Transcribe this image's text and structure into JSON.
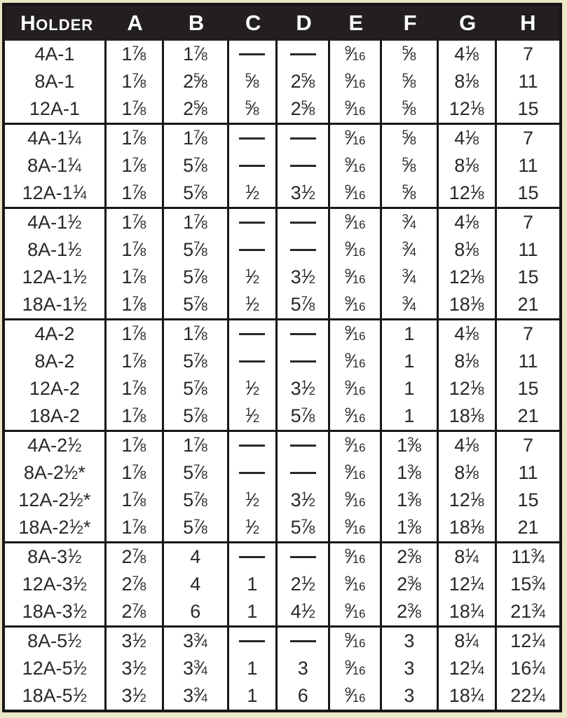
{
  "colors": {
    "page_edge": "#ebe6c4",
    "header_bg": "#231f20",
    "header_text": "#ffffff",
    "body_bg": "#ffffff",
    "border": "#171717",
    "text": "#2b2728"
  },
  "table": {
    "header": {
      "holder_label": "Holder",
      "columns": [
        "A",
        "B",
        "C",
        "D",
        "E",
        "F",
        "G",
        "H"
      ]
    },
    "empty_marker": "—",
    "groups": [
      {
        "rows": [
          {
            "holder": "4A-1",
            "values": [
              "1 7/8",
              "1 7/8",
              "—",
              "—",
              "9/16",
              "5/8",
              "4 1/8",
              "7"
            ]
          },
          {
            "holder": "8A-1",
            "values": [
              "1 7/8",
              "2 5/8",
              "5/8",
              "2 5/8",
              "9/16",
              "5/8",
              "8 1/8",
              "11"
            ]
          },
          {
            "holder": "12A-1",
            "values": [
              "1 7/8",
              "2 5/8",
              "5/8",
              "2 5/8",
              "9/16",
              "5/8",
              "12 1/8",
              "15"
            ]
          }
        ]
      },
      {
        "rows": [
          {
            "holder": "4A-1 1/4",
            "values": [
              "1 7/8",
              "1 7/8",
              "—",
              "—",
              "9/16",
              "5/8",
              "4 1/8",
              "7"
            ]
          },
          {
            "holder": "8A-1 1/4",
            "values": [
              "1 7/8",
              "5 7/8",
              "—",
              "—",
              "9/16",
              "5/8",
              "8 1/8",
              "11"
            ]
          },
          {
            "holder": "12A-1 1/4",
            "values": [
              "1 7/8",
              "5 7/8",
              "1/2",
              "3 1/2",
              "9/16",
              "5/8",
              "12 1/8",
              "15"
            ]
          }
        ]
      },
      {
        "rows": [
          {
            "holder": "4A-1 1/2",
            "values": [
              "1 7/8",
              "1 7/8",
              "—",
              "—",
              "9/16",
              "3/4",
              "4 1/8",
              "7"
            ]
          },
          {
            "holder": "8A-1 1/2",
            "values": [
              "1 7/8",
              "5 7/8",
              "—",
              "—",
              "9/16",
              "3/4",
              "8 1/8",
              "11"
            ]
          },
          {
            "holder": "12A-1 1/2",
            "values": [
              "1 7/8",
              "5 7/8",
              "1/2",
              "3 1/2",
              "9/16",
              "3/4",
              "12 1/8",
              "15"
            ]
          },
          {
            "holder": "18A-1 1/2",
            "values": [
              "1 7/8",
              "5 7/8",
              "1/2",
              "5 7/8",
              "9/16",
              "3/4",
              "18 1/8",
              "21"
            ]
          }
        ]
      },
      {
        "rows": [
          {
            "holder": "4A-2",
            "values": [
              "1 7/8",
              "1 7/8",
              "—",
              "—",
              "9/16",
              "1",
              "4 1/8",
              "7"
            ]
          },
          {
            "holder": "8A-2",
            "values": [
              "1 7/8",
              "5 7/8",
              "—",
              "—",
              "9/16",
              "1",
              "8 1/8",
              "11"
            ]
          },
          {
            "holder": "12A-2",
            "values": [
              "1 7/8",
              "5 7/8",
              "1/2",
              "3 1/2",
              "9/16",
              "1",
              "12 1/8",
              "15"
            ]
          },
          {
            "holder": "18A-2",
            "values": [
              "1 7/8",
              "5 7/8",
              "1/2",
              "5 7/8",
              "9/16",
              "1",
              "18 1/8",
              "21"
            ]
          }
        ]
      },
      {
        "rows": [
          {
            "holder": "4A-2 1/2",
            "values": [
              "1 7/8",
              "1 7/8",
              "—",
              "—",
              "9/16",
              "1 3/8",
              "4 1/8",
              "7"
            ]
          },
          {
            "holder": "8A-2 1/2*",
            "values": [
              "1 7/8",
              "5 7/8",
              "—",
              "—",
              "9/16",
              "1 3/8",
              "8 1/8",
              "11"
            ]
          },
          {
            "holder": "12A-2 1/2*",
            "values": [
              "1 7/8",
              "5 7/8",
              "1/2",
              "3 1/2",
              "9/16",
              "1 3/8",
              "12 1/8",
              "15"
            ]
          },
          {
            "holder": "18A-2 1/2*",
            "values": [
              "1 7/8",
              "5 7/8",
              "1/2",
              "5 7/8",
              "9/16",
              "1 3/8",
              "18 1/8",
              "21"
            ]
          }
        ]
      },
      {
        "rows": [
          {
            "holder": "8A-3 1/2",
            "values": [
              "2 7/8",
              "4",
              "—",
              "—",
              "9/16",
              "2 3/8",
              "8 1/4",
              "11 3/4"
            ]
          },
          {
            "holder": "12A-3 1/2",
            "values": [
              "2 7/8",
              "4",
              "1",
              "2 1/2",
              "9/16",
              "2 3/8",
              "12 1/4",
              "15 3/4"
            ]
          },
          {
            "holder": "18A-3 1/2",
            "values": [
              "2 7/8",
              "6",
              "1",
              "4 1/2",
              "9/16",
              "2 3/8",
              "18 1/4",
              "21 3/4"
            ]
          }
        ]
      },
      {
        "rows": [
          {
            "holder": "8A-5 1/2",
            "values": [
              "3 1/2",
              "3 3/4",
              "—",
              "—",
              "9/16",
              "3",
              "8 1/4",
              "12 1/4"
            ]
          },
          {
            "holder": "12A-5 1/2",
            "values": [
              "3 1/2",
              "3 3/4",
              "1",
              "3",
              "9/16",
              "3",
              "12 1/4",
              "16 1/4"
            ]
          },
          {
            "holder": "18A-5 1/2",
            "values": [
              "3 1/2",
              "3 3/4",
              "1",
              "6",
              "9/16",
              "3",
              "18 1/4",
              "22 1/4"
            ]
          }
        ]
      }
    ]
  }
}
